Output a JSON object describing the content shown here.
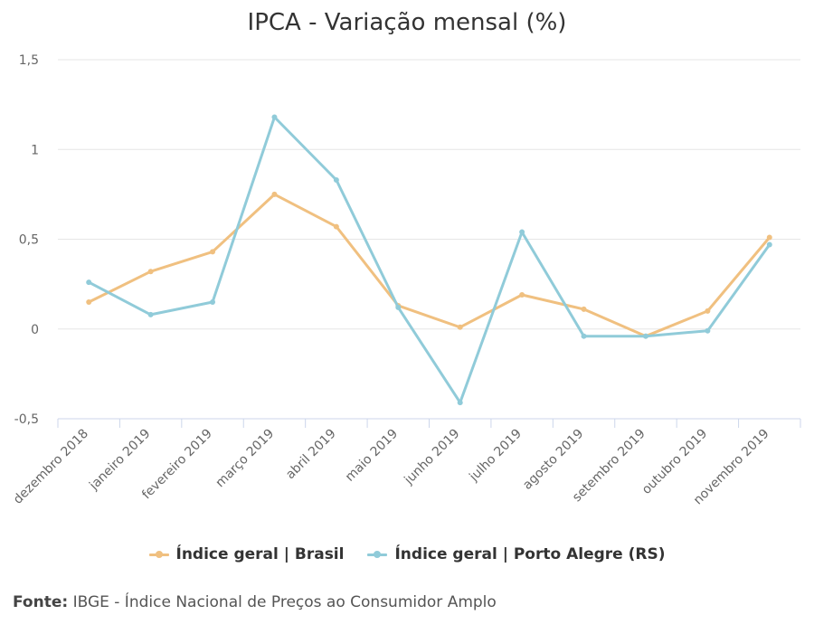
{
  "chart_data": {
    "type": "line",
    "title": "IPCA - Variação mensal (%)",
    "categories": [
      "dezembro 2018",
      "janeiro 2019",
      "fevereiro 2019",
      "março 2019",
      "abril 2019",
      "maio 2019",
      "junho 2019",
      "julho 2019",
      "agosto 2019",
      "setembro 2019",
      "outubro 2019",
      "novembro 2019"
    ],
    "ylim": [
      -0.5,
      1.5
    ],
    "yticks": [
      -0.5,
      0,
      0.5,
      1,
      1.5
    ],
    "ytick_labels": [
      "-0,5",
      "0",
      "0,5",
      "1",
      "1,5"
    ],
    "grid": true,
    "legend_position": "bottom-center",
    "series": [
      {
        "name": "Índice geral | Brasil",
        "color": "#f0c080",
        "values": [
          0.15,
          0.32,
          0.43,
          0.75,
          0.57,
          0.13,
          0.01,
          0.19,
          0.11,
          -0.04,
          0.1,
          0.51
        ]
      },
      {
        "name": "Índice geral | Porto Alegre (RS)",
        "color": "#90cbd9",
        "values": [
          0.26,
          0.08,
          0.15,
          1.18,
          0.83,
          0.12,
          -0.41,
          0.54,
          -0.04,
          -0.04,
          -0.01,
          0.47
        ]
      }
    ]
  },
  "source": {
    "label": "Fonte:",
    "text": " IBGE - Índice Nacional de Preços ao Consumidor Amplo"
  }
}
